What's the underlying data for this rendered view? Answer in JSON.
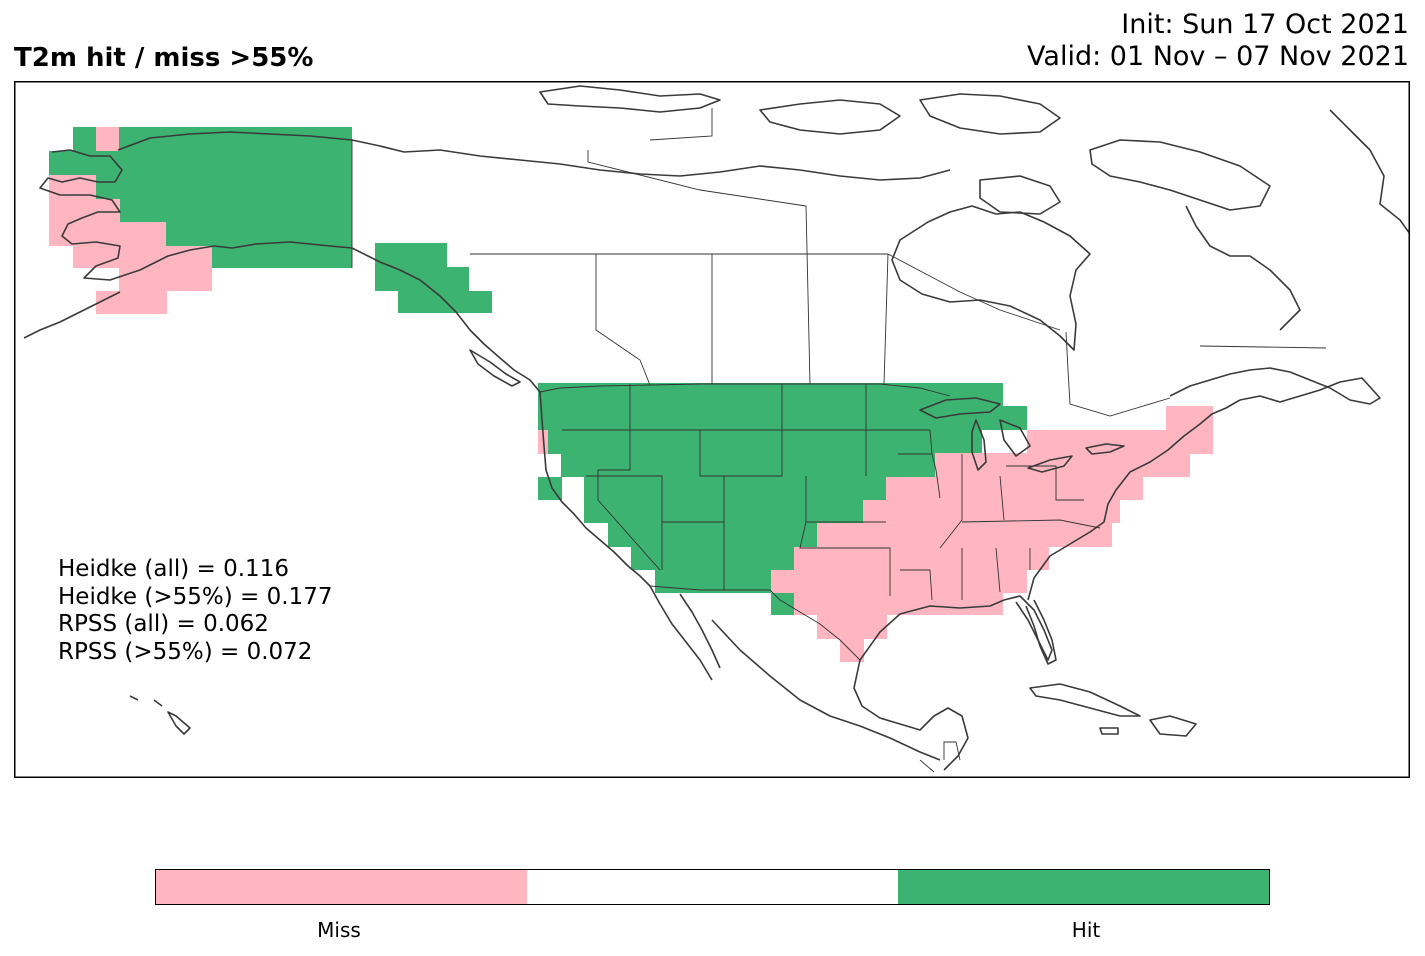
{
  "title": "T2m hit / miss  >55%",
  "init": "Init: Sun 17 Oct 2021",
  "valid": "Valid: 01 Nov – 07 Nov 2021",
  "scores": [
    "Heidke (all) = 0.116",
    "Heidke (>55%) = 0.177",
    "RPSS (all) = 0.062",
    "RPSS (>55%) = 0.072"
  ],
  "colorbar": {
    "segments": [
      {
        "label": "Miss",
        "color": "#ffb6c1"
      },
      {
        "label": "",
        "color": "#ffffff"
      },
      {
        "label": "Hit",
        "color": "#3cb371"
      }
    ]
  },
  "colors": {
    "hit": "#3cb371",
    "miss": "#ffb6c1",
    "coast": "#3a3a3a",
    "border": "#333333"
  }
}
